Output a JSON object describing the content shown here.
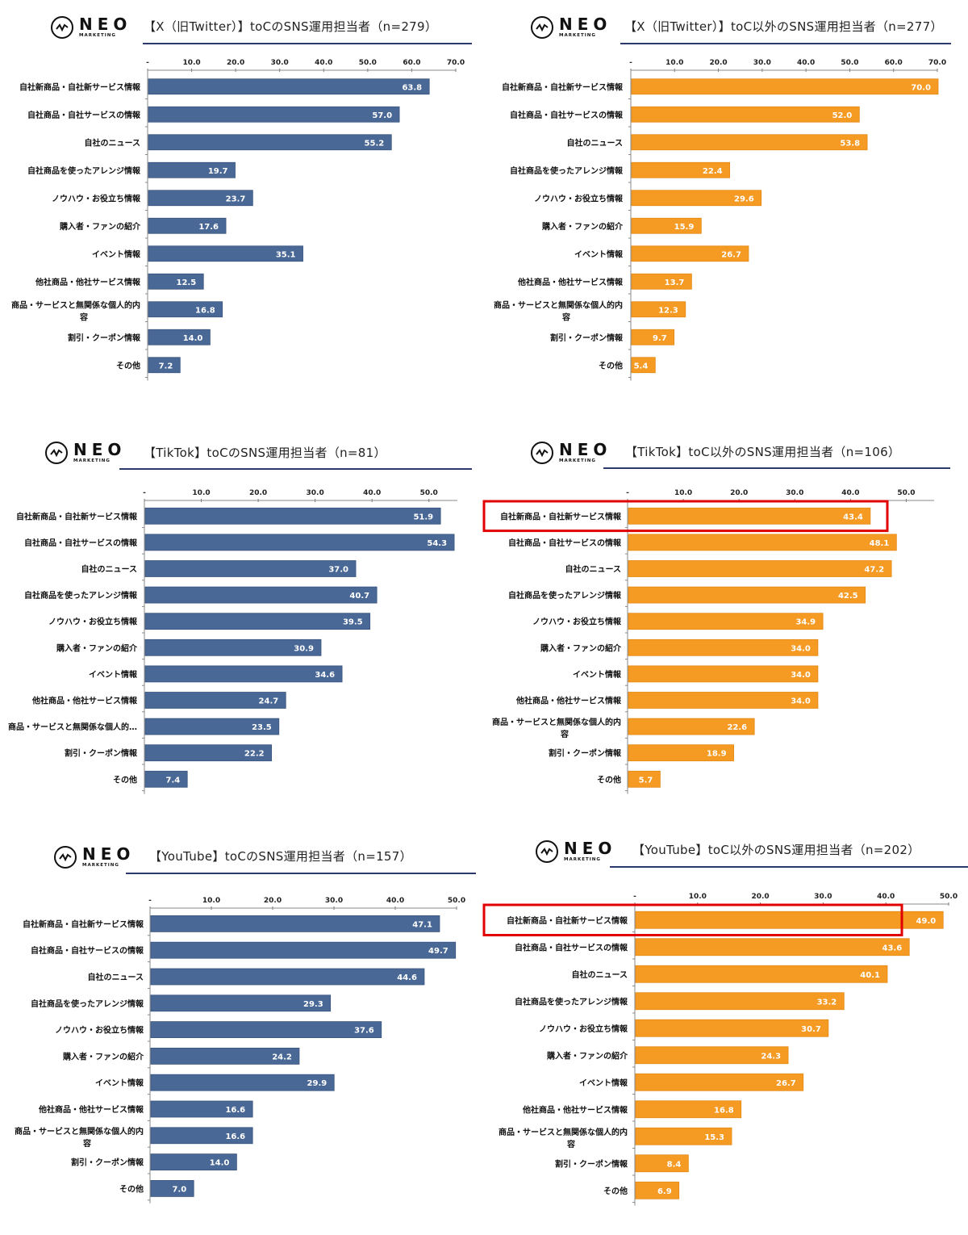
{
  "brand": {
    "name": "NEO",
    "sub": "MARKETING"
  },
  "colors": {
    "toc": "#4a6896",
    "nontoc": "#f59a23",
    "highlight": "#e00000",
    "rule": "#2b3a6b"
  },
  "chart_data": [
    {
      "type": "bar",
      "orientation": "horizontal",
      "title": "【X（旧Twitter）】toCのSNS運用担当者（n=279）",
      "series_color": "toc",
      "xlim": [
        0,
        70
      ],
      "ticks": [
        "-",
        "10.0",
        "20.0",
        "30.0",
        "40.0",
        "50.0",
        "60.0",
        "70.0"
      ],
      "categories": [
        "自社新商品・自社新サービス情報",
        "自社商品・自社サービスの情報",
        "自社のニュース",
        "自社商品を使ったアレンジ情報",
        "ノウハウ・お役立ち情報",
        "購入者・ファンの紹介",
        "イベント情報",
        "他社商品・他社サービス情報",
        "商品・サービスと無関係な個人的内|容",
        "割引・クーポン情報",
        "その他"
      ],
      "values": [
        63.8,
        57.0,
        55.2,
        19.7,
        23.7,
        17.6,
        35.1,
        12.5,
        16.8,
        14.0,
        7.2
      ],
      "highlight_index": null
    },
    {
      "type": "bar",
      "orientation": "horizontal",
      "title": "【X（旧Twitter）】toC以外のSNS運用担当者（n=277）",
      "series_color": "nontoc",
      "xlim": [
        0,
        70
      ],
      "ticks": [
        "-",
        "10.0",
        "20.0",
        "30.0",
        "40.0",
        "50.0",
        "60.0",
        "70.0"
      ],
      "categories": [
        "自社新商品・自社新サービス情報",
        "自社商品・自社サービスの情報",
        "自社のニュース",
        "自社商品を使ったアレンジ情報",
        "ノウハウ・お役立ち情報",
        "購入者・ファンの紹介",
        "イベント情報",
        "他社商品・他社サービス情報",
        "商品・サービスと無関係な個人的内|容",
        "割引・クーポン情報",
        "その他"
      ],
      "values": [
        70.0,
        52.0,
        53.8,
        22.4,
        29.6,
        15.9,
        26.7,
        13.7,
        12.3,
        9.7,
        5.4
      ],
      "highlight_index": null
    },
    {
      "type": "bar",
      "orientation": "horizontal",
      "title": "【TikTok】toCのSNS運用担当者（n=81）",
      "series_color": "toc",
      "xlim": [
        0,
        55
      ],
      "ticks": [
        "-",
        "10.0",
        "20.0",
        "30.0",
        "40.0",
        "50.0"
      ],
      "categories": [
        "自社新商品・自社新サービス情報",
        "自社商品・自社サービスの情報",
        "自社のニュース",
        "自社商品を使ったアレンジ情報",
        "ノウハウ・お役立ち情報",
        "購入者・ファンの紹介",
        "イベント情報",
        "他社商品・他社サービス情報",
        "商品・サービスと無関係な個人的…",
        "割引・クーポン情報",
        "その他"
      ],
      "values": [
        51.9,
        54.3,
        37.0,
        40.7,
        39.5,
        30.9,
        34.6,
        24.7,
        23.5,
        22.2,
        7.4
      ],
      "highlight_index": null
    },
    {
      "type": "bar",
      "orientation": "horizontal",
      "title": "【TikTok】toC以外のSNS運用担当者（n=106）",
      "series_color": "nontoc",
      "xlim": [
        0,
        55
      ],
      "ticks": [
        "-",
        "10.0",
        "20.0",
        "30.0",
        "40.0",
        "50.0"
      ],
      "categories": [
        "自社新商品・自社新サービス情報",
        "自社商品・自社サービスの情報",
        "自社のニュース",
        "自社商品を使ったアレンジ情報",
        "ノウハウ・お役立ち情報",
        "購入者・ファンの紹介",
        "イベント情報",
        "他社商品・他社サービス情報",
        "商品・サービスと無関係な個人的内|容",
        "割引・クーポン情報",
        "その他"
      ],
      "values": [
        43.4,
        48.1,
        47.2,
        42.5,
        34.9,
        34.0,
        34.0,
        34.0,
        22.6,
        18.9,
        5.7
      ],
      "highlight_index": 0
    },
    {
      "type": "bar",
      "orientation": "horizontal",
      "title": "【YouTube】toCのSNS運用担当者（n=157）",
      "series_color": "toc",
      "xlim": [
        0,
        50
      ],
      "ticks": [
        "-",
        "10.0",
        "20.0",
        "30.0",
        "40.0",
        "50.0"
      ],
      "categories": [
        "自社新商品・自社新サービス情報",
        "自社商品・自社サービスの情報",
        "自社のニュース",
        "自社商品を使ったアレンジ情報",
        "ノウハウ・お役立ち情報",
        "購入者・ファンの紹介",
        "イベント情報",
        "他社商品・他社サービス情報",
        "商品・サービスと無関係な個人的内|容",
        "割引・クーポン情報",
        "その他"
      ],
      "values": [
        47.1,
        49.7,
        44.6,
        29.3,
        37.6,
        24.2,
        29.9,
        16.6,
        16.6,
        14.0,
        7.0
      ],
      "highlight_index": null
    },
    {
      "type": "bar",
      "orientation": "horizontal",
      "title": "【YouTube】toC以外のSNS運用担当者（n=202）",
      "series_color": "nontoc",
      "xlim": [
        0,
        50
      ],
      "ticks": [
        "-",
        "10.0",
        "20.0",
        "30.0",
        "40.0",
        "50.0"
      ],
      "categories": [
        "自社新商品・自社新サービス情報",
        "自社商品・自社サービスの情報",
        "自社のニュース",
        "自社商品を使ったアレンジ情報",
        "ノウハウ・お役立ち情報",
        "購入者・ファンの紹介",
        "イベント情報",
        "他社商品・他社サービス情報",
        "商品・サービスと無関係な個人的内|容",
        "割引・クーポン情報",
        "その他"
      ],
      "values": [
        49.0,
        43.6,
        40.1,
        33.2,
        30.7,
        24.3,
        26.7,
        16.8,
        15.3,
        8.4,
        6.9
      ],
      "highlight_index": 0
    }
  ]
}
